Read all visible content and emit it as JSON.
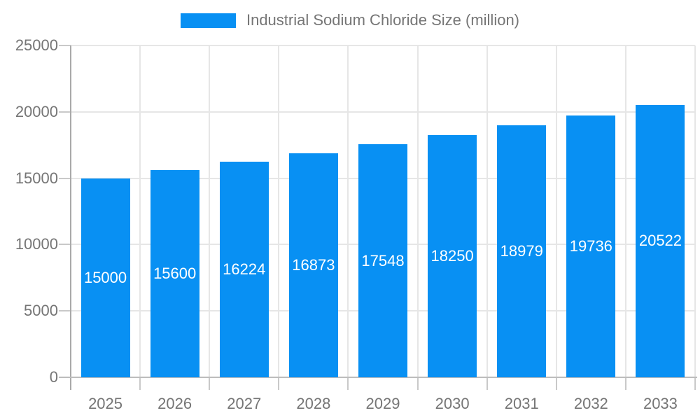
{
  "legend": {
    "label": "Industrial Sodium Chloride Size (million)"
  },
  "chart_data": {
    "type": "bar",
    "title": "Industrial Sodium Chloride Size (million)",
    "categories": [
      "2025",
      "2026",
      "2027",
      "2028",
      "2029",
      "2030",
      "2031",
      "2032",
      "2033"
    ],
    "values": [
      15000,
      15600,
      16224,
      16873,
      17548,
      18250,
      18979,
      19736,
      20522
    ],
    "series": [
      {
        "name": "Industrial Sodium Chloride Size (million)",
        "values": [
          15000,
          15600,
          16224,
          16873,
          17548,
          18250,
          18979,
          19736,
          20522
        ]
      }
    ],
    "xlabel": "",
    "ylabel": "",
    "ylim": [
      0,
      25000
    ],
    "y_ticks": [
      0,
      5000,
      10000,
      15000,
      20000,
      25000
    ],
    "grid": true,
    "legend_position": "top",
    "bar_color": "#0890f3",
    "bar_label_color": "#ffffff",
    "axis_text_color": "#757575",
    "gridline_color": "#e6e6e6"
  }
}
